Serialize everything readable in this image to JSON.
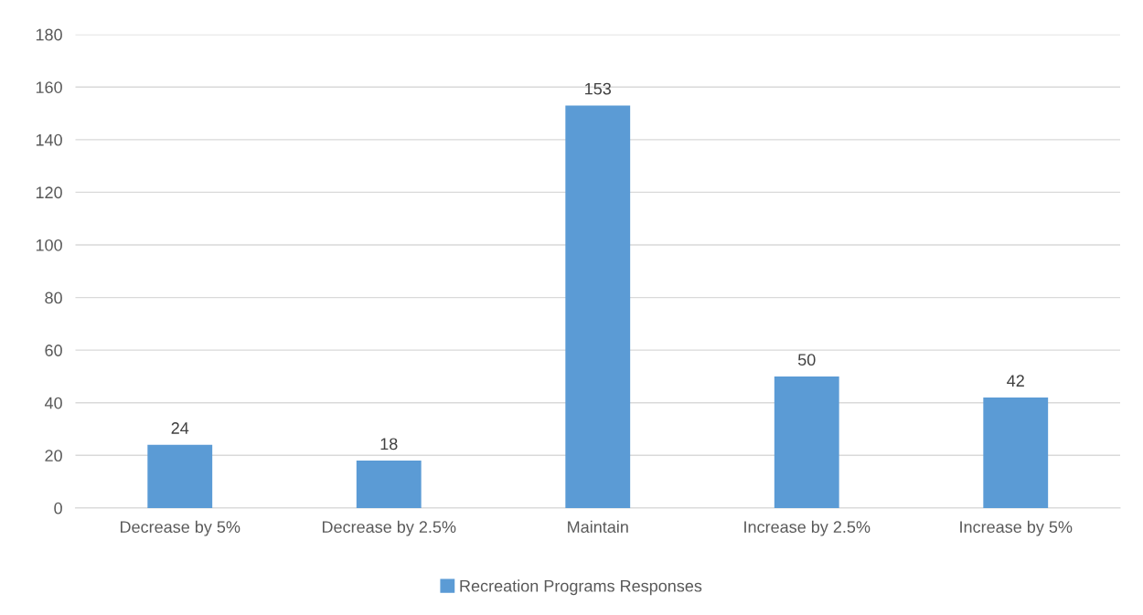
{
  "chart_data": {
    "type": "bar",
    "categories": [
      "Decrease by 5%",
      "Decrease by 2.5%",
      "Maintain",
      "Increase by 2.5%",
      "Increase by 5%"
    ],
    "series": [
      {
        "name": "Recreation Programs Responses",
        "color": "#5b9bd5",
        "values": [
          24,
          18,
          153,
          50,
          42
        ]
      }
    ],
    "ylim": [
      0,
      180
    ],
    "yticks": [
      0,
      20,
      40,
      60,
      80,
      100,
      120,
      140,
      160,
      180
    ],
    "grid": "y",
    "legend": "bottom",
    "data_labels": true
  }
}
